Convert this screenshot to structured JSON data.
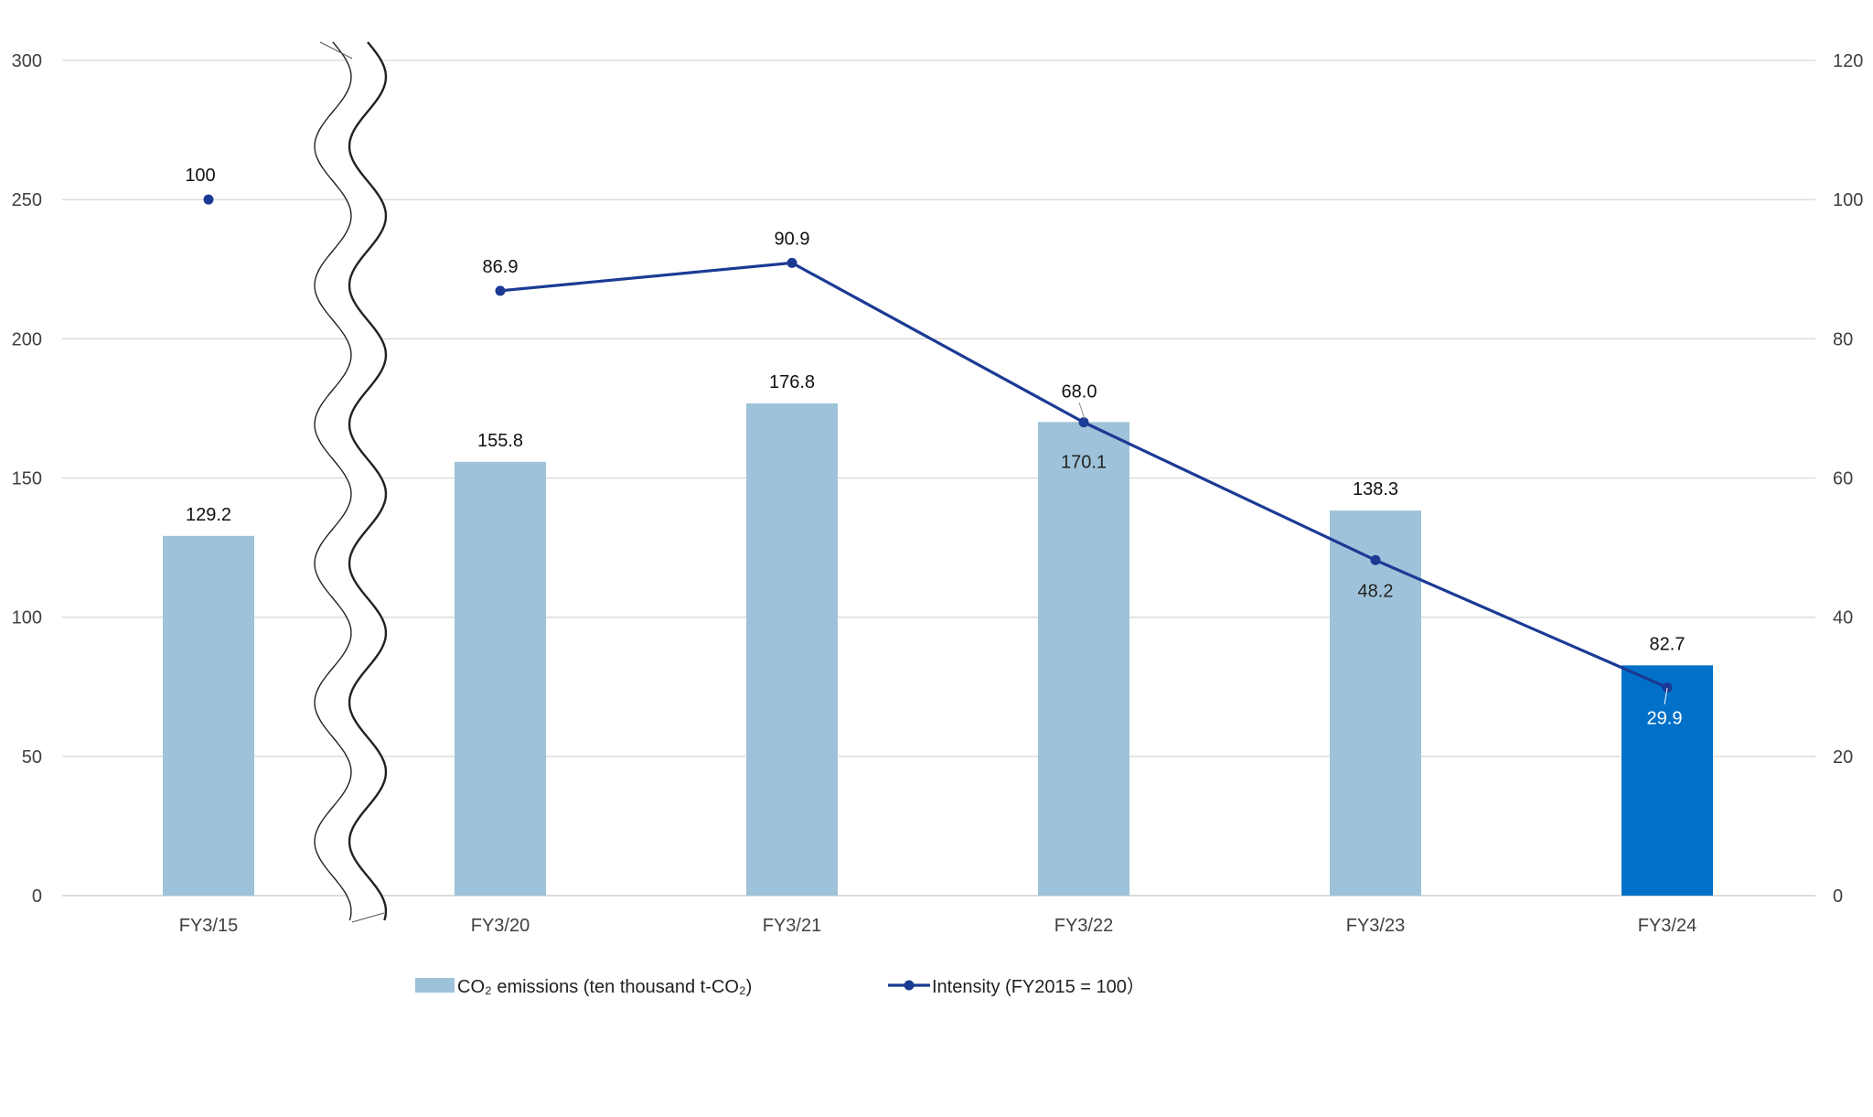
{
  "chart_data": {
    "type": "bar",
    "categories": [
      "FY3/15",
      "FY3/20",
      "FY3/21",
      "FY3/22",
      "FY3/23",
      "FY3/24"
    ],
    "series": [
      {
        "name": "CO₂ emissions (ten thousand t-CO₂)",
        "type": "bar",
        "axis": "left",
        "values": [
          129.2,
          155.8,
          176.8,
          170.1,
          138.3,
          82.7
        ],
        "labels": [
          "129.2",
          "155.8",
          "176.8",
          "170.1",
          "138.3",
          "82.7"
        ],
        "color": "#9EC2D9",
        "highlight_color": "#0070C8",
        "highlight_index": 5
      },
      {
        "name": "Intensity (FY2015 = 100）",
        "type": "line",
        "axis": "right",
        "values": [
          100,
          86.9,
          90.9,
          68.0,
          48.2,
          29.9
        ],
        "labels": [
          "100",
          "86.9",
          "90.9",
          "68.0",
          "48.2",
          "29.9"
        ],
        "color": "#1A3A94",
        "line_break_after_index": 0
      }
    ],
    "y_left": {
      "min": 0,
      "max": 300,
      "ticks": [
        "0",
        "50",
        "100",
        "150",
        "200",
        "250",
        "300"
      ]
    },
    "y_right": {
      "min": 0,
      "max": 120,
      "ticks": [
        "0",
        "20",
        "40",
        "60",
        "80",
        "100",
        "120"
      ]
    },
    "axis_break_between": [
      "FY3/15",
      "FY3/20"
    ],
    "grid": true,
    "legend_position": "bottom",
    "title": "",
    "xlabel": "",
    "ylabel": ""
  }
}
